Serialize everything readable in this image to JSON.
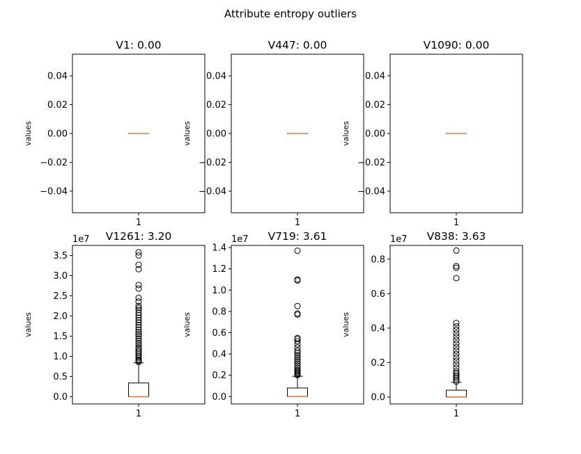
{
  "figure": {
    "suptitle": "Attribute entropy outliers",
    "box_color": "#000000",
    "median_color": "#e07b39",
    "flier_color": "#000000"
  },
  "chart_data": [
    {
      "type": "box",
      "title": "V1: 0.00",
      "ylabel": "values",
      "xticks": [
        "1"
      ],
      "ylim": [
        -0.055,
        0.055
      ],
      "yticks": [
        -0.04,
        -0.02,
        0.0,
        0.02,
        0.04
      ],
      "ytick_labels": [
        "−0.04",
        "−0.02",
        "0.00",
        "0.02",
        "0.04"
      ],
      "offset_text": "",
      "box": {
        "q1": 0,
        "median": 0,
        "q3": 0,
        "whisker_low": 0,
        "whisker_high": 0
      },
      "fliers": []
    },
    {
      "type": "box",
      "title": "V447: 0.00",
      "ylabel": "values",
      "xticks": [
        "1"
      ],
      "ylim": [
        -0.055,
        0.055
      ],
      "yticks": [
        -0.04,
        -0.02,
        0.0,
        0.02,
        0.04
      ],
      "ytick_labels": [
        "−0.04",
        "−0.02",
        "0.00",
        "0.02",
        "0.04"
      ],
      "offset_text": "",
      "box": {
        "q1": 0,
        "median": 0,
        "q3": 0,
        "whisker_low": 0,
        "whisker_high": 0
      },
      "fliers": []
    },
    {
      "type": "box",
      "title": "V1090: 0.00",
      "ylabel": "values",
      "xticks": [
        "1"
      ],
      "ylim": [
        -0.055,
        0.055
      ],
      "yticks": [
        -0.04,
        -0.02,
        0.0,
        0.02,
        0.04
      ],
      "ytick_labels": [
        "−0.04",
        "−0.02",
        "0.00",
        "0.02",
        "0.04"
      ],
      "offset_text": "",
      "box": {
        "q1": 0,
        "median": 0,
        "q3": 0,
        "whisker_low": 0,
        "whisker_high": 0
      },
      "fliers": []
    },
    {
      "type": "box",
      "title": "V1261: 3.20",
      "ylabel": "values",
      "xticks": [
        "1"
      ],
      "ylim": [
        -1.8,
        37.5
      ],
      "yticks": [
        0,
        5,
        10,
        15,
        20,
        25,
        30,
        35
      ],
      "ytick_labels": [
        "0.0",
        "0.5",
        "1.0",
        "1.5",
        "2.0",
        "2.5",
        "3.0",
        "3.5"
      ],
      "offset_text": "1e7",
      "box": {
        "q1": 0,
        "median": 0,
        "q3": 3.4,
        "whisker_low": 0,
        "whisker_high": 8.4
      },
      "fliers": [
        8.6,
        8.9,
        9.2,
        9.6,
        10.0,
        10.4,
        10.9,
        11.3,
        11.8,
        12.2,
        12.8,
        13.3,
        13.8,
        14.4,
        15.0,
        15.5,
        16.0,
        16.6,
        17.2,
        17.8,
        18.4,
        19.0,
        19.6,
        20.2,
        20.8,
        21.5,
        22.0,
        22.5,
        23.6,
        24.5,
        26.8,
        27.7,
        31.6,
        32.7,
        35.0,
        35.8
      ]
    },
    {
      "type": "box",
      "title": "V719: 3.61",
      "ylabel": "values",
      "xticks": [
        "1"
      ],
      "ylim": [
        -0.07,
        1.42
      ],
      "yticks": [
        0,
        0.2,
        0.4,
        0.6,
        0.8,
        1.0,
        1.2,
        1.4
      ],
      "ytick_labels": [
        "0.0",
        "0.2",
        "0.4",
        "0.6",
        "0.8",
        "1.0",
        "1.2",
        "1.4"
      ],
      "offset_text": "1e7",
      "box": {
        "q1": 0,
        "median": 0,
        "q3": 0.08,
        "whisker_low": 0,
        "whisker_high": 0.19
      },
      "fliers": [
        0.2,
        0.21,
        0.22,
        0.23,
        0.24,
        0.25,
        0.27,
        0.29,
        0.31,
        0.33,
        0.35,
        0.37,
        0.39,
        0.41,
        0.43,
        0.46,
        0.49,
        0.52,
        0.54,
        0.55,
        0.77,
        0.78,
        0.85,
        1.09,
        1.1,
        1.37
      ]
    },
    {
      "type": "box",
      "title": "V838: 3.63",
      "ylabel": "values",
      "xticks": [
        "1"
      ],
      "ylim": [
        -0.04,
        0.88
      ],
      "yticks": [
        0,
        0.2,
        0.4,
        0.6,
        0.8
      ],
      "ytick_labels": [
        "0.0",
        "0.2",
        "0.4",
        "0.6",
        "0.8"
      ],
      "offset_text": "1e7",
      "box": {
        "q1": 0,
        "median": 0,
        "q3": 0.04,
        "whisker_low": 0,
        "whisker_high": 0.085
      },
      "fliers": [
        0.09,
        0.1,
        0.11,
        0.12,
        0.13,
        0.14,
        0.15,
        0.17,
        0.19,
        0.21,
        0.23,
        0.25,
        0.27,
        0.29,
        0.31,
        0.33,
        0.35,
        0.37,
        0.39,
        0.41,
        0.43,
        0.69,
        0.75,
        0.76,
        0.85
      ]
    }
  ]
}
